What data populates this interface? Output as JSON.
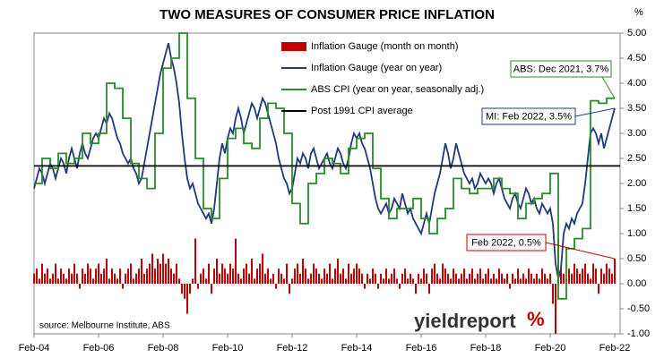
{
  "chart_data": {
    "type": "line",
    "title": "TWO MEASURES OF CONSUMER PRICE INFLATION",
    "y_unit": "%",
    "source": "source: Melbourne Institute, ABS",
    "logo": "yieldreport",
    "logo_mark": "%",
    "categories": [
      "Feb-04",
      null,
      null,
      null,
      null,
      null,
      null,
      null,
      null,
      null,
      null,
      null,
      null,
      null,
      null,
      null,
      null,
      null,
      null,
      null,
      null,
      null,
      null,
      null,
      "Feb-06",
      null,
      null,
      null,
      null,
      null,
      null,
      null,
      null,
      null,
      null,
      null,
      null,
      null,
      null,
      null,
      null,
      null,
      null,
      null,
      null,
      null,
      null,
      null,
      "Feb-08",
      null,
      null,
      null,
      null,
      null,
      null,
      null,
      null,
      null,
      null,
      null,
      null,
      null,
      null,
      null,
      null,
      null,
      null,
      null,
      null,
      null,
      null,
      null,
      "Feb-10",
      null,
      null,
      null,
      null,
      null,
      null,
      null,
      null,
      null,
      null,
      null,
      null,
      null,
      null,
      null,
      null,
      null,
      null,
      null,
      null,
      null,
      null,
      null,
      "Feb-12",
      null,
      null,
      null,
      null,
      null,
      null,
      null,
      null,
      null,
      null,
      null,
      null,
      null,
      null,
      null,
      null,
      null,
      null,
      null,
      null,
      null,
      null,
      null,
      "Feb-14",
      null,
      null,
      null,
      null,
      null,
      null,
      null,
      null,
      null,
      null,
      null,
      null,
      null,
      null,
      null,
      null,
      null,
      null,
      null,
      null,
      null,
      null,
      null,
      "Feb-16",
      null,
      null,
      null,
      null,
      null,
      null,
      null,
      null,
      null,
      null,
      null,
      null,
      null,
      null,
      null,
      null,
      null,
      null,
      null,
      null,
      null,
      null,
      null,
      "Feb-18",
      null,
      null,
      null,
      null,
      null,
      null,
      null,
      null,
      null,
      null,
      null,
      null,
      null,
      null,
      null,
      null,
      null,
      null,
      null,
      null,
      null,
      null,
      null,
      "Feb-20",
      null,
      null,
      null,
      null,
      null,
      null,
      null,
      null,
      null,
      null,
      null,
      null,
      null,
      null,
      null,
      null,
      null,
      null,
      null,
      null,
      null,
      null,
      null,
      "Feb-22"
    ],
    "series": [
      {
        "name": "Inflation Gauge (month on month)",
        "kind": "bar",
        "color": "#c00000",
        "values": [
          0.2,
          0.3,
          0.1,
          0.4,
          0.2,
          0.3,
          0.1,
          0.2,
          0.4,
          0.1,
          0.3,
          0.2,
          0.1,
          0.3,
          0.2,
          0.4,
          0.2,
          -0.1,
          0.3,
          0.2,
          0.4,
          0.3,
          0.1,
          0.3,
          0.4,
          0.2,
          0.3,
          0.5,
          0.1,
          0.3,
          0.2,
          0.1,
          0.3,
          -0.1,
          0.2,
          0.3,
          0.4,
          0.1,
          0.2,
          0.3,
          0.5,
          0.2,
          0.3,
          0.4,
          0.6,
          0.3,
          0.5,
          0.4,
          0.6,
          0.4,
          0.5,
          0.3,
          0.2,
          0.4,
          0.1,
          -0.2,
          -0.3,
          -0.6,
          -0.2,
          0.1,
          0.9,
          -0.1,
          0.2,
          0.3,
          0.1,
          0.4,
          -0.2,
          0.3,
          0.5,
          0.2,
          0.4,
          0.3,
          0.2,
          0.4,
          0.3,
          0.9,
          0.2,
          0.1,
          0.3,
          0.4,
          0.2,
          0.5,
          0.1,
          0.3,
          0.4,
          0.6,
          0.2,
          0.3,
          0.1,
          0.2,
          -0.1,
          0.3,
          0.2,
          0.1,
          0.4,
          -0.2,
          0.1,
          0.3,
          0.4,
          0.2,
          0.5,
          0.3,
          0.1,
          0.2,
          0.4,
          0.3,
          0.2,
          0.1,
          0.3,
          0.2,
          0.4,
          0.1,
          0.3,
          0.5,
          0.2,
          0.3,
          0.1,
          0.4,
          0.2,
          0.3,
          0.4,
          0.3,
          0.2,
          -0.1,
          0.2,
          0.1,
          0.3,
          0.2,
          -0.1,
          0.2,
          0.1,
          0.3,
          0.1,
          0.2,
          0.3,
          0.1,
          -0.1,
          0.2,
          0.3,
          0.1,
          0.2,
          0.1,
          -0.2,
          0.2,
          0.1,
          0.3,
          0.2,
          -0.2,
          0.3,
          0.4,
          0.2,
          0.1,
          0.4,
          0.3,
          0.2,
          0.1,
          0.3,
          0.2,
          0.1,
          0.2,
          0.3,
          0.1,
          0.2,
          0.3,
          0.1,
          0.2,
          0.3,
          0.1,
          0.2,
          0.3,
          0.1,
          0.2,
          0.1,
          0.3,
          0.2,
          0.1,
          0.2,
          -0.1,
          0.2,
          0.1,
          0.3,
          0.1,
          0.2,
          0.1,
          0.3,
          0.2,
          0.1,
          0.2,
          0.1,
          0.3,
          0.2,
          0.1,
          0.2,
          -0.4,
          -1.0,
          0.9,
          0.3,
          0.2,
          0.1,
          0.3,
          0.2,
          0.4,
          0.3,
          0.2,
          0.3,
          0.4,
          0.2,
          0.1,
          0.4,
          0.3,
          -0.2,
          0.3,
          0.2,
          0.4,
          0.3,
          0.2,
          0.5
        ]
      },
      {
        "name": "Inflation Gauge (year on year)",
        "kind": "line",
        "color": "#1f3a7a",
        "values": [
          1.9,
          2.1,
          2.3,
          2.2,
          2.0,
          2.2,
          2.4,
          2.3,
          2.1,
          2.3,
          2.5,
          2.4,
          2.2,
          2.5,
          2.7,
          2.5,
          2.3,
          2.6,
          2.8,
          2.6,
          2.5,
          2.7,
          2.9,
          3.0,
          2.9,
          3.1,
          3.3,
          3.2,
          3.4,
          3.3,
          3.1,
          2.9,
          2.8,
          2.6,
          2.5,
          2.4,
          2.5,
          2.3,
          2.2,
          2.0,
          2.1,
          2.4,
          2.7,
          3.0,
          3.3,
          3.6,
          3.9,
          4.2,
          4.4,
          4.6,
          4.8,
          4.5,
          4.3,
          4.0,
          3.6,
          3.0,
          2.5,
          2.1,
          1.9,
          2.0,
          1.8,
          1.6,
          1.5,
          1.4,
          1.3,
          1.4,
          1.2,
          1.5,
          2.0,
          2.5,
          2.8,
          2.6,
          2.9,
          3.1,
          3.0,
          3.3,
          3.5,
          3.3,
          3.0,
          3.2,
          3.4,
          3.6,
          3.5,
          3.3,
          3.5,
          3.7,
          3.6,
          3.4,
          3.2,
          3.0,
          2.8,
          2.5,
          2.3,
          2.1,
          2.0,
          1.8,
          1.9,
          2.2,
          2.5,
          2.4,
          2.6,
          2.5,
          2.3,
          2.6,
          2.7,
          2.5,
          2.3,
          2.4,
          2.5,
          2.6,
          2.4,
          2.3,
          2.5,
          2.7,
          2.6,
          2.4,
          2.3,
          2.5,
          2.8,
          3.0,
          2.9,
          3.0,
          2.8,
          2.7,
          2.5,
          2.3,
          2.0,
          1.7,
          1.5,
          1.4,
          1.5,
          1.6,
          1.4,
          1.5,
          1.7,
          1.6,
          1.5,
          1.8,
          1.6,
          1.4,
          1.5,
          1.3,
          1.2,
          1.1,
          1.0,
          1.2,
          1.4,
          1.2,
          1.5,
          1.8,
          2.0,
          2.2,
          2.5,
          2.8,
          2.6,
          2.3,
          2.5,
          2.8,
          2.6,
          2.4,
          2.2,
          2.1,
          2.0,
          2.1,
          1.9,
          2.0,
          2.2,
          2.1,
          2.0,
          2.1,
          2.0,
          1.8,
          2.0,
          2.1,
          1.9,
          1.7,
          1.6,
          1.5,
          1.7,
          1.8,
          1.6,
          1.5,
          1.7,
          1.9,
          1.8,
          1.6,
          1.7,
          1.5,
          1.4,
          1.6,
          1.5,
          1.4,
          1.5,
          1.2,
          0.4,
          0.1,
          0.3,
          1.0,
          1.2,
          1.1,
          1.3,
          1.2,
          1.4,
          1.5,
          1.6,
          2.0,
          2.5,
          3.0,
          3.1,
          3.0,
          2.8,
          3.0,
          2.7,
          2.9,
          3.1,
          3.3,
          3.5
        ]
      },
      {
        "name": "ABS CPI (year on year, seasonally adj.)",
        "kind": "step",
        "color": "#2a8c2a",
        "values": [
          2.0,
          2.0,
          2.0,
          2.5,
          2.5,
          2.5,
          2.3,
          2.3,
          2.3,
          2.6,
          2.6,
          2.6,
          2.4,
          2.4,
          2.4,
          2.5,
          2.5,
          2.5,
          3.0,
          3.0,
          3.0,
          2.8,
          2.8,
          2.8,
          3.0,
          3.0,
          3.0,
          4.0,
          4.0,
          4.0,
          3.9,
          3.9,
          3.9,
          3.3,
          3.3,
          3.3,
          2.4,
          2.4,
          2.4,
          2.1,
          2.1,
          2.1,
          1.9,
          1.9,
          1.9,
          3.0,
          3.0,
          3.0,
          4.3,
          4.3,
          4.3,
          4.5,
          4.5,
          4.5,
          5.0,
          5.0,
          5.0,
          3.7,
          3.7,
          3.7,
          2.5,
          2.5,
          2.5,
          1.5,
          1.5,
          1.5,
          1.3,
          1.3,
          1.3,
          2.1,
          2.1,
          2.1,
          2.9,
          2.9,
          2.9,
          3.1,
          3.1,
          3.1,
          2.8,
          2.8,
          2.8,
          2.7,
          2.7,
          2.7,
          3.3,
          3.3,
          3.3,
          3.6,
          3.6,
          3.6,
          3.5,
          3.5,
          3.5,
          3.0,
          3.0,
          3.0,
          1.6,
          1.6,
          1.6,
          1.2,
          1.2,
          1.2,
          2.0,
          2.0,
          2.0,
          2.2,
          2.2,
          2.2,
          2.5,
          2.5,
          2.5,
          2.4,
          2.4,
          2.4,
          2.2,
          2.2,
          2.2,
          2.7,
          2.7,
          2.7,
          2.9,
          2.9,
          2.9,
          3.0,
          3.0,
          3.0,
          2.3,
          2.3,
          2.3,
          1.7,
          1.7,
          1.7,
          1.3,
          1.3,
          1.3,
          1.5,
          1.5,
          1.5,
          1.5,
          1.5,
          1.5,
          1.7,
          1.7,
          1.7,
          1.3,
          1.3,
          1.3,
          1.0,
          1.0,
          1.0,
          1.3,
          1.3,
          1.3,
          1.5,
          1.5,
          1.5,
          2.1,
          2.1,
          2.1,
          1.9,
          1.9,
          1.9,
          1.8,
          1.8,
          1.8,
          1.9,
          1.9,
          1.9,
          1.9,
          1.9,
          1.9,
          2.1,
          2.1,
          2.1,
          1.9,
          1.9,
          1.9,
          1.8,
          1.8,
          1.8,
          1.3,
          1.3,
          1.3,
          1.6,
          1.6,
          1.6,
          1.7,
          1.7,
          1.7,
          1.8,
          1.8,
          1.8,
          2.2,
          2.2,
          2.2,
          -0.3,
          -0.3,
          -0.3,
          0.7,
          0.7,
          0.7,
          0.9,
          0.9,
          0.9,
          1.1,
          1.1,
          1.1,
          3.65,
          3.65,
          3.65,
          3.6,
          3.6,
          3.6,
          3.7,
          3.7,
          3.7,
          3.7
        ]
      }
    ],
    "hline": {
      "name": "Post 1991 CPI average",
      "value": 2.35,
      "color": "#000000"
    },
    "annotations": [
      {
        "text": "ABS: Dec 2021, 3.7%",
        "series": 2,
        "index": 216,
        "color": "#2a8c2a"
      },
      {
        "text": "MI: Feb 2022, 3.5%",
        "series": 1,
        "index": 216,
        "color": "#1f3a7a"
      },
      {
        "text": "Feb 2022, 0.5%",
        "series": 0,
        "index": 216,
        "color": "#c00000"
      }
    ],
    "ylim": [
      -1,
      5
    ],
    "yticks": [
      {
        "value": -1,
        "label": "-1.00"
      },
      {
        "value": -0.5,
        "label": "-0.50"
      },
      {
        "value": 0,
        "label": "0.00"
      },
      {
        "value": 0.5,
        "label": "0.50"
      },
      {
        "value": 1,
        "label": "1.00"
      },
      {
        "value": 1.5,
        "label": "1.50"
      },
      {
        "value": 2,
        "label": "2.00"
      },
      {
        "value": 2.5,
        "label": "2.50"
      },
      {
        "value": 3,
        "label": "3.00"
      },
      {
        "value": 3.5,
        "label": "3.50"
      },
      {
        "value": 4,
        "label": "4.00"
      },
      {
        "value": 4.5,
        "label": "4.50"
      },
      {
        "value": 5,
        "label": "5.00"
      }
    ],
    "grid": false
  }
}
